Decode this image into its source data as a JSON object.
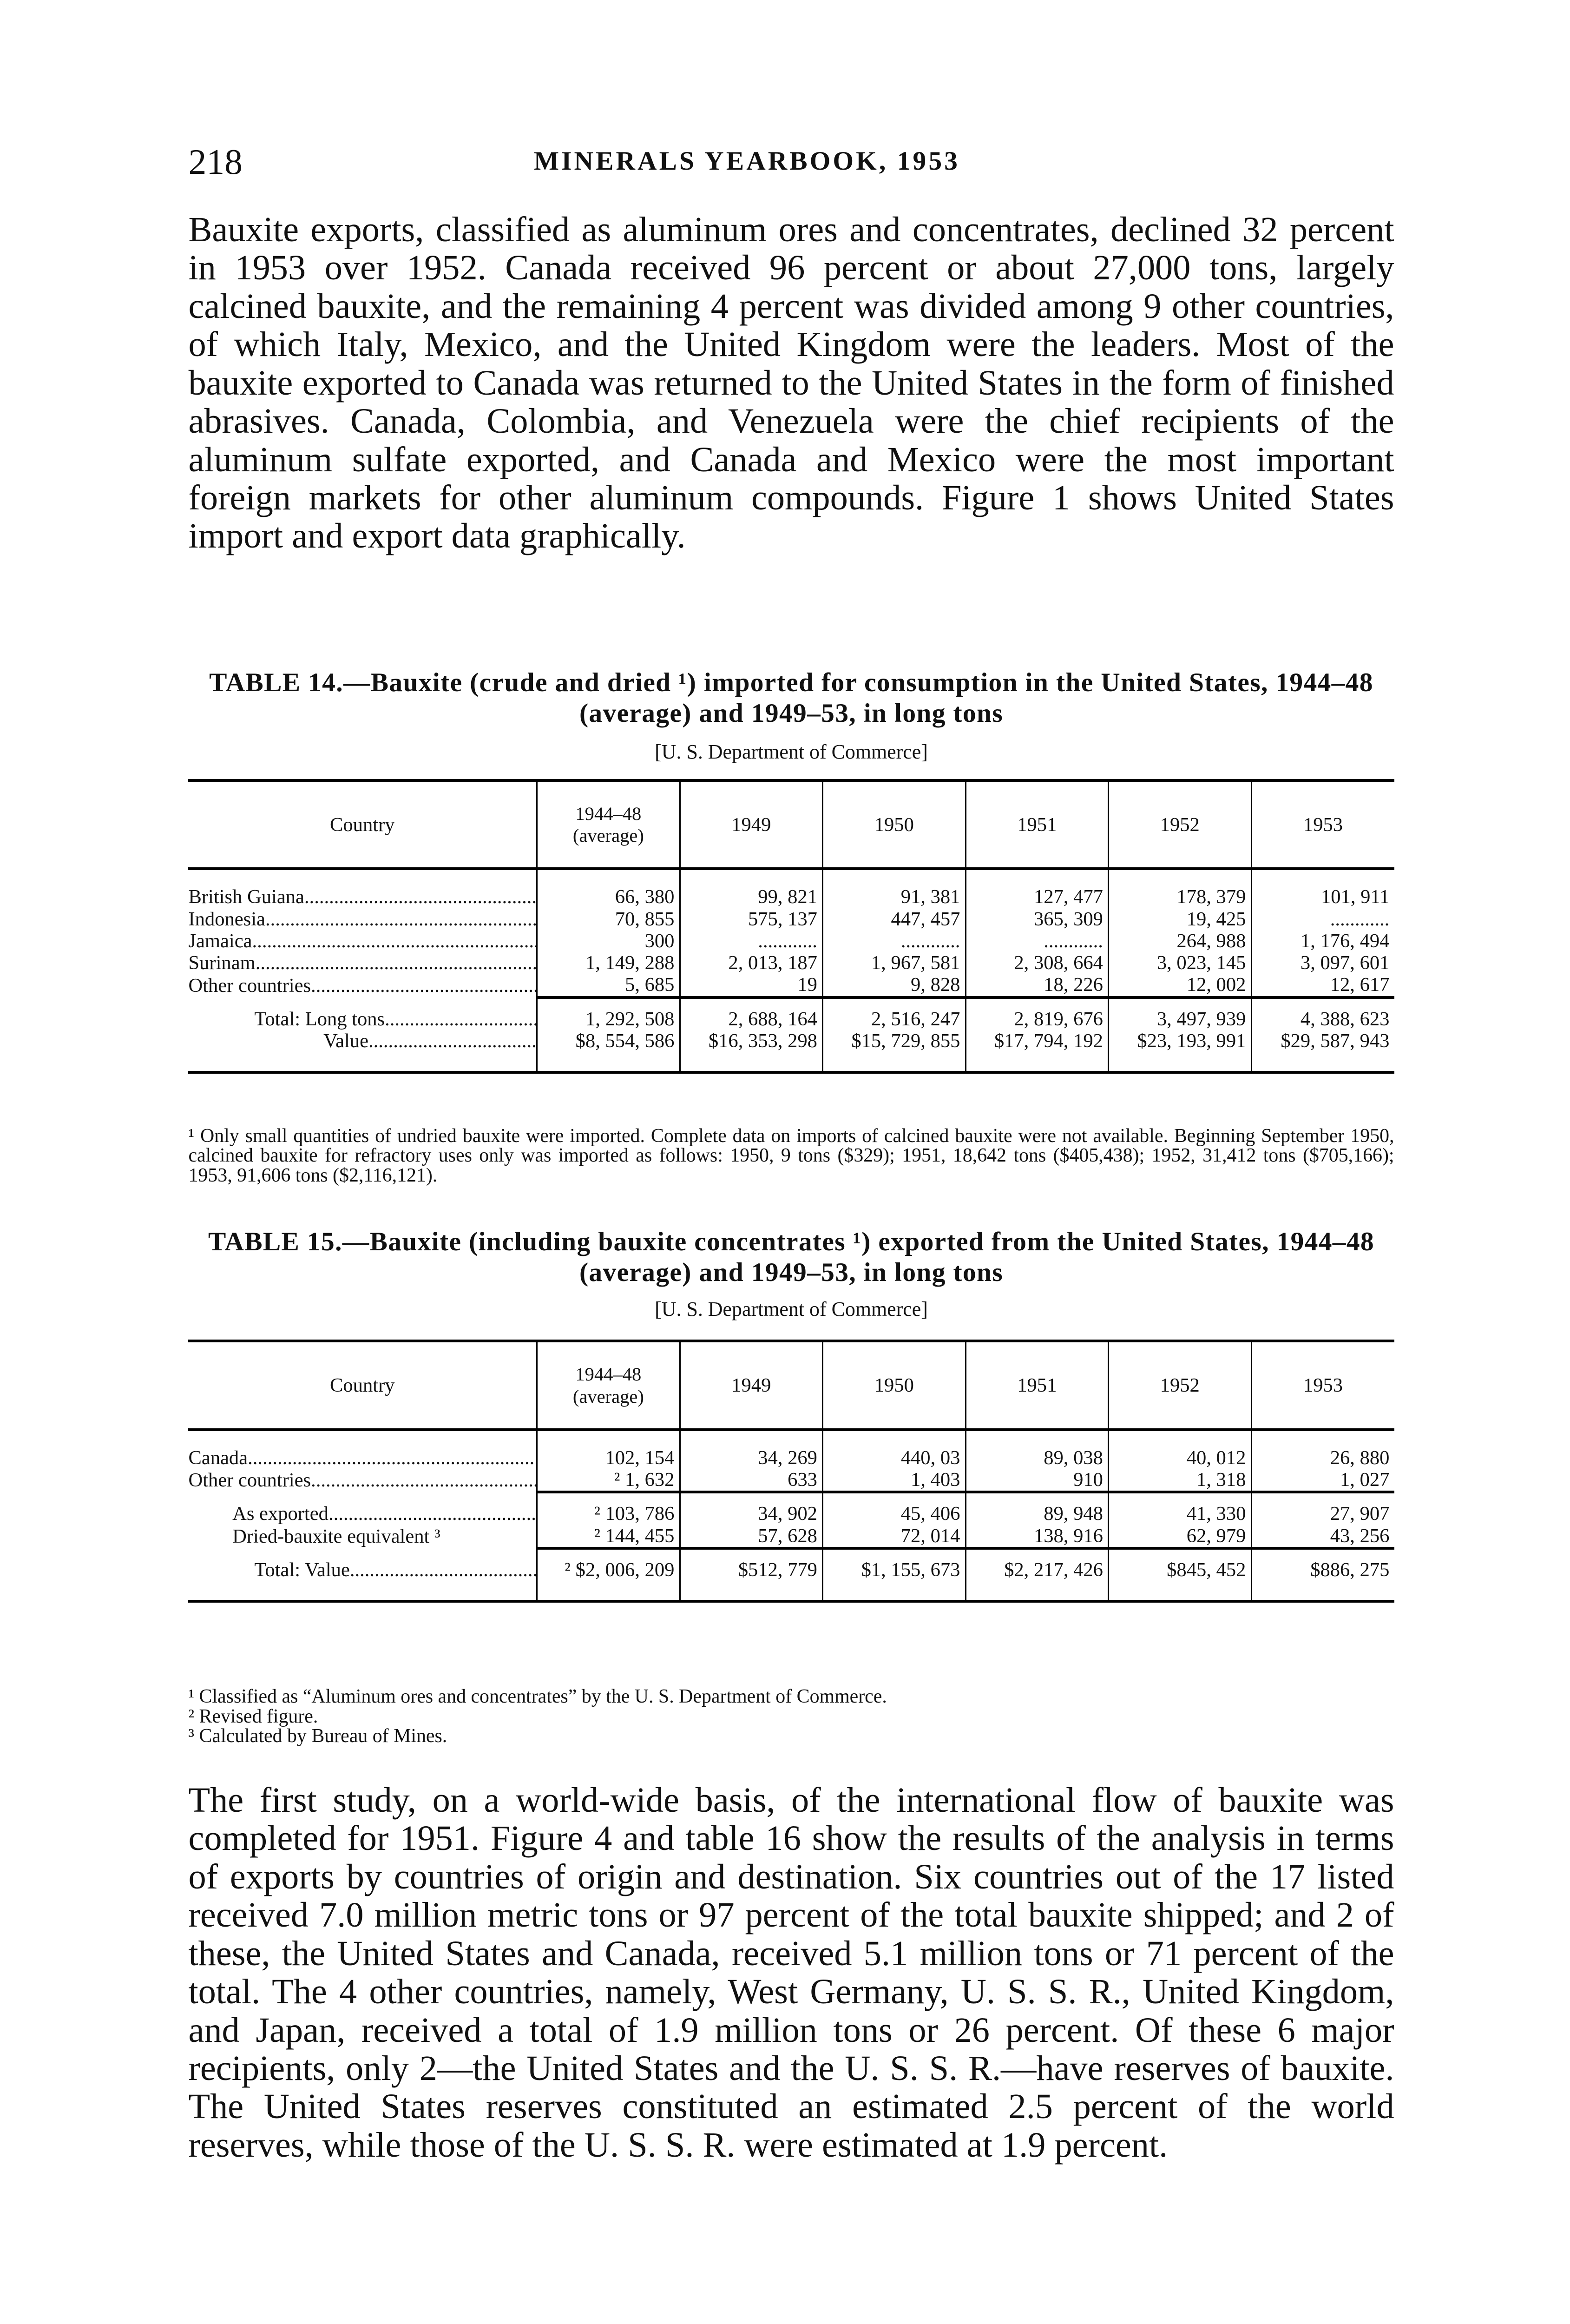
{
  "header": {
    "page_number": "218",
    "running_title": "MINERALS YEARBOOK, 1953"
  },
  "paragraph1": "Bauxite exports, classified as aluminum ores and concentrates, declined 32 percent in 1953 over 1952. Canada received 96 percent or about 27,000 tons, largely calcined bauxite, and the remaining 4 percent was divided among 9 other countries, of which Italy, Mexico, and the United Kingdom were the leaders. Most of the bauxite exported to Canada was returned to the United States in the form of finished abrasives. Canada, Colombia, and Venezuela were the chief recipients of the aluminum sulfate exported, and Canada and Mexico were the most important foreign markets for other aluminum compounds. Figure 1 shows United States import and export data graphically.",
  "table14": {
    "title": "TABLE 14.—Bauxite (crude and dried ¹) imported for consumption in the United States, 1944–48 (average) and 1949–53, in long tons",
    "source": "[U. S. Department of Commerce]",
    "columns": [
      "Country",
      "1944–48 (average)",
      "1949",
      "1950",
      "1951",
      "1952",
      "1953"
    ],
    "rows": [
      [
        "British Guiana",
        "66, 380",
        "99, 821",
        "91, 381",
        "127, 477",
        "178, 379",
        "101, 911"
      ],
      [
        "Indonesia",
        "70, 855",
        "575, 137",
        "447, 457",
        "365, 309",
        "19, 425",
        "............"
      ],
      [
        "Jamaica",
        "300",
        "............",
        "............",
        "............",
        "264, 988",
        "1, 176, 494"
      ],
      [
        "Surinam",
        "1, 149, 288",
        "2, 013, 187",
        "1, 967, 581",
        "2, 308, 664",
        "3, 023, 145",
        "3, 097, 601"
      ],
      [
        "Other countries",
        "5, 685",
        "19",
        "9, 828",
        "18, 226",
        "12, 002",
        "12, 617"
      ]
    ],
    "totals": [
      [
        "Total: Long tons",
        "1, 292, 508",
        "2, 688, 164",
        "2, 516, 247",
        "2, 819, 676",
        "3, 497, 939",
        "4, 388, 623"
      ],
      [
        "Value",
        "$8, 554, 586",
        "$16, 353, 298",
        "$15, 729, 855",
        "$17, 794, 192",
        "$23, 193, 991",
        "$29, 587, 943"
      ]
    ],
    "footnotes": [
      "¹ Only small quantities of undried bauxite were imported. Complete data on imports of calcined bauxite were not available. Beginning September 1950, calcined bauxite for refractory uses only was imported as follows: 1950, 9 tons ($329); 1951, 18,642 tons ($405,438); 1952, 31,412 tons ($705,166); 1953, 91,606 tons ($2,116,121)."
    ]
  },
  "table15": {
    "title": "TABLE 15.—Bauxite (including bauxite concentrates ¹) exported from the United States, 1944–48 (average) and 1949–53, in long tons",
    "source": "[U. S. Department of Commerce]",
    "columns": [
      "Country",
      "1944–48 (average)",
      "1949",
      "1950",
      "1951",
      "1952",
      "1953"
    ],
    "rows": [
      [
        "Canada",
        "102, 154",
        "34, 269",
        "440, 03",
        "89, 038",
        "40, 012",
        "26, 880"
      ],
      [
        "Other countries",
        "² 1, 632",
        "633",
        "1, 403",
        "910",
        "1, 318",
        "1, 027"
      ]
    ],
    "subtotals": [
      [
        "As exported",
        "² 103, 786",
        "34, 902",
        "45, 406",
        "89, 948",
        "41, 330",
        "27, 907"
      ],
      [
        "Dried-bauxite equivalent ³",
        "² 144, 455",
        "57, 628",
        "72, 014",
        "138, 916",
        "62, 979",
        "43, 256"
      ]
    ],
    "totals": [
      [
        "Total: Value",
        "² $2, 006, 209",
        "$512, 779",
        "$1, 155, 673",
        "$2, 217, 426",
        "$845, 452",
        "$886, 275"
      ]
    ],
    "footnotes": [
      "¹ Classified as “Aluminum ores and concentrates” by the U. S. Department of Commerce.",
      "² Revised figure.",
      "³ Calculated by Bureau of Mines."
    ]
  },
  "paragraph2": "The first study, on a world-wide basis, of the international flow of bauxite was completed for 1951. Figure 4 and table 16 show the results of the analysis in terms of exports by countries of origin and destination. Six countries out of the 17 listed received 7.0 million metric tons or 97 percent of the total bauxite shipped; and 2 of these, the United States and Canada, received 5.1 million tons or 71 percent of the total. The 4 other countries, namely, West Germany, U. S. S. R., United Kingdom, and Japan, received a total of 1.9 million tons or 26 percent. Of these 6 major recipients, only 2—the United States and the U. S. S. R.—have reserves of bauxite. The United States reserves constituted an estimated 2.5 percent of the world reserves, while those of the U. S. S. R. were estimated at 1.9 percent."
}
